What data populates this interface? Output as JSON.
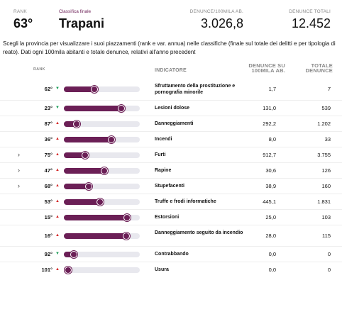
{
  "header": {
    "rank_label": "RANK",
    "rank_value": "63°",
    "title_label": "Classifica finale",
    "title_value": "Trapani",
    "density_label": "DENUNCE/100MILA AB.",
    "density_value": "3.026,8",
    "total_label": "DENUNCE TOTALI",
    "total_value": "12.452"
  },
  "description": "Scegli la provincia per visualizzare i suoi piazzamenti (rank e var. annua) nelle classifiche (finale sul totale dei delitti e per tipologia di reato). Dati ogni 100mila abitanti e totale denunce, relativi all'anno precedent",
  "table": {
    "col_rank": "RANK",
    "col_indicator": "INDICATORE",
    "col_density_1": "DENUNCE SU",
    "col_density_2": "100MILA AB.",
    "col_total_1": "TOTALE",
    "col_total_2": "DENUNCE",
    "colors": {
      "bar_fill": "#6b1f56",
      "bar_track": "#e8e8ee",
      "up": "#d42a2a",
      "down": "#1e9e5a"
    },
    "rows": [
      {
        "expandable": false,
        "rank": "62°",
        "trend": "down",
        "fill": 0.4,
        "indicator": "Sfruttamento della prostituzione e pornografia minorile",
        "density": "1,7",
        "total": "7",
        "tall": true
      },
      {
        "expandable": false,
        "rank": "23°",
        "trend": "down",
        "fill": 0.76,
        "indicator": "Lesioni dolose",
        "density": "131,0",
        "total": "539",
        "tall": false
      },
      {
        "expandable": false,
        "rank": "87°",
        "trend": "up",
        "fill": 0.17,
        "indicator": "Danneggiamenti",
        "density": "292,2",
        "total": "1.202",
        "tall": false
      },
      {
        "expandable": false,
        "rank": "36°",
        "trend": "up",
        "fill": 0.63,
        "indicator": "Incendi",
        "density": "8,0",
        "total": "33",
        "tall": false
      },
      {
        "expandable": true,
        "rank": "75°",
        "trend": "up",
        "fill": 0.28,
        "indicator": "Furti",
        "density": "912,7",
        "total": "3.755",
        "tall": false
      },
      {
        "expandable": true,
        "rank": "47°",
        "trend": "up",
        "fill": 0.53,
        "indicator": "Rapine",
        "density": "30,6",
        "total": "126",
        "tall": false
      },
      {
        "expandable": true,
        "rank": "68°",
        "trend": "up",
        "fill": 0.33,
        "indicator": "Stupefacenti",
        "density": "38,9",
        "total": "160",
        "tall": false
      },
      {
        "expandable": false,
        "rank": "53°",
        "trend": "up",
        "fill": 0.48,
        "indicator": "Truffe e frodi informatiche",
        "density": "445,1",
        "total": "1.831",
        "tall": false
      },
      {
        "expandable": false,
        "rank": "15°",
        "trend": "up",
        "fill": 0.83,
        "indicator": "Estorsioni",
        "density": "25,0",
        "total": "103",
        "tall": false
      },
      {
        "expandable": false,
        "rank": "16°",
        "trend": "up",
        "fill": 0.82,
        "indicator": "Danneggiamento seguito da incendio",
        "density": "28,0",
        "total": "115",
        "tall": true
      },
      {
        "expandable": false,
        "rank": "92°",
        "trend": "down",
        "fill": 0.13,
        "indicator": "Contrabbando",
        "density": "0,0",
        "total": "0",
        "tall": false
      },
      {
        "expandable": false,
        "rank": "101°",
        "trend": "up",
        "fill": 0.06,
        "indicator": "Usura",
        "density": "0,0",
        "total": "0",
        "tall": false
      }
    ]
  }
}
